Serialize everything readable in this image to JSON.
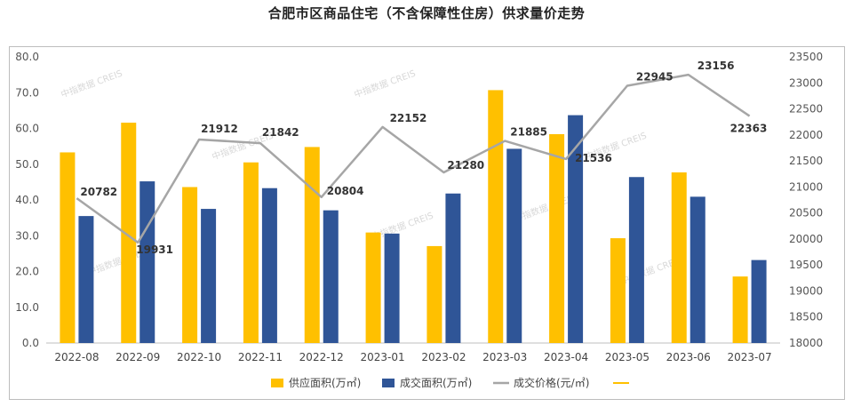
{
  "title": "合肥市区商品住宅（不含保障性住房）供求量价走势",
  "chart_data": {
    "type": "bar",
    "categories": [
      "2022-08",
      "2022-09",
      "2022-10",
      "2022-11",
      "2022-12",
      "2023-01",
      "2023-02",
      "2023-03",
      "2023-04",
      "2023-05",
      "2023-06",
      "2023-07"
    ],
    "series": [
      {
        "name": "供应面积(万㎡)",
        "kind": "bar",
        "axis": "left",
        "color": "#FFC000",
        "values": [
          53.3,
          61.6,
          43.6,
          50.5,
          54.8,
          30.9,
          27.1,
          70.7,
          58.4,
          29.3,
          47.7,
          18.6
        ]
      },
      {
        "name": "成交面积(万㎡)",
        "kind": "bar",
        "axis": "left",
        "color": "#2F5597",
        "values": [
          35.5,
          45.2,
          37.5,
          43.3,
          37.1,
          30.6,
          41.8,
          54.3,
          63.7,
          46.4,
          40.9,
          23.2
        ]
      },
      {
        "name": "成交价格(元/㎡)",
        "kind": "line",
        "axis": "right",
        "color": "#A6A6A6",
        "values": [
          20782,
          19931,
          21912,
          21842,
          20804,
          22152,
          21280,
          21885,
          21536,
          22945,
          23156,
          22363
        ],
        "labels": [
          "20782",
          "19931",
          "21912",
          "21842",
          "20804",
          "22152",
          "21280",
          "21885",
          "21536",
          "22945",
          "23156",
          "22363"
        ]
      },
      {
        "name": "",
        "kind": "legend-only",
        "color": "#FFC000"
      }
    ],
    "left_axis": {
      "ylim": [
        0,
        80
      ],
      "ticks": [
        "0.0",
        "10.0",
        "20.0",
        "30.0",
        "40.0",
        "50.0",
        "60.0",
        "70.0",
        "80.0"
      ]
    },
    "right_axis": {
      "ylim": [
        18000,
        23500
      ],
      "ticks": [
        "18000",
        "18500",
        "19000",
        "19500",
        "20000",
        "20500",
        "21000",
        "21500",
        "22000",
        "22500",
        "23000",
        "23500"
      ]
    },
    "legend_position": "bottom",
    "grid": false,
    "watermark": "中指数据 CREIS"
  }
}
